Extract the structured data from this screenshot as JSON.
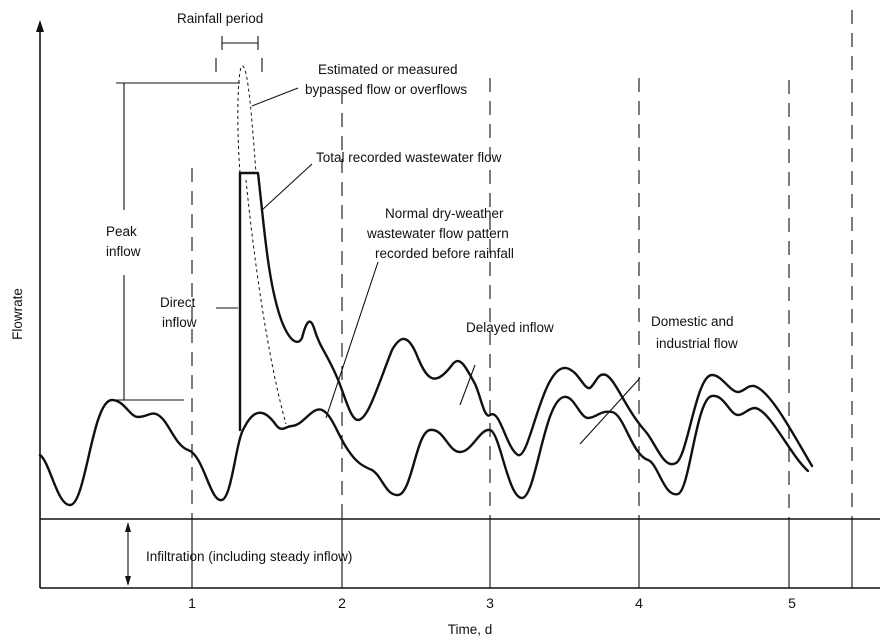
{
  "labels": {
    "rainfall_period": "Rainfall period",
    "bypassed_1": "Estimated or measured",
    "bypassed_2": "bypassed flow or overflows",
    "total_recorded": "Total recorded wastewater flow",
    "dry_weather_1": "Normal dry-weather",
    "dry_weather_2": "wastewater flow pattern",
    "dry_weather_3": "recorded before rainfall",
    "peak_1": "Peak",
    "peak_2": "inflow",
    "direct_1": "Direct",
    "direct_2": "inflow",
    "delayed": "Delayed inflow",
    "domestic_1": "Domestic and",
    "domestic_2": "industrial flow",
    "infiltration": "Infiltration (including steady inflow)"
  },
  "axes": {
    "y_label": "Flowrate",
    "x_label": "Time, d",
    "x_ticks": [
      "1",
      "2",
      "3",
      "4",
      "5"
    ]
  }
}
